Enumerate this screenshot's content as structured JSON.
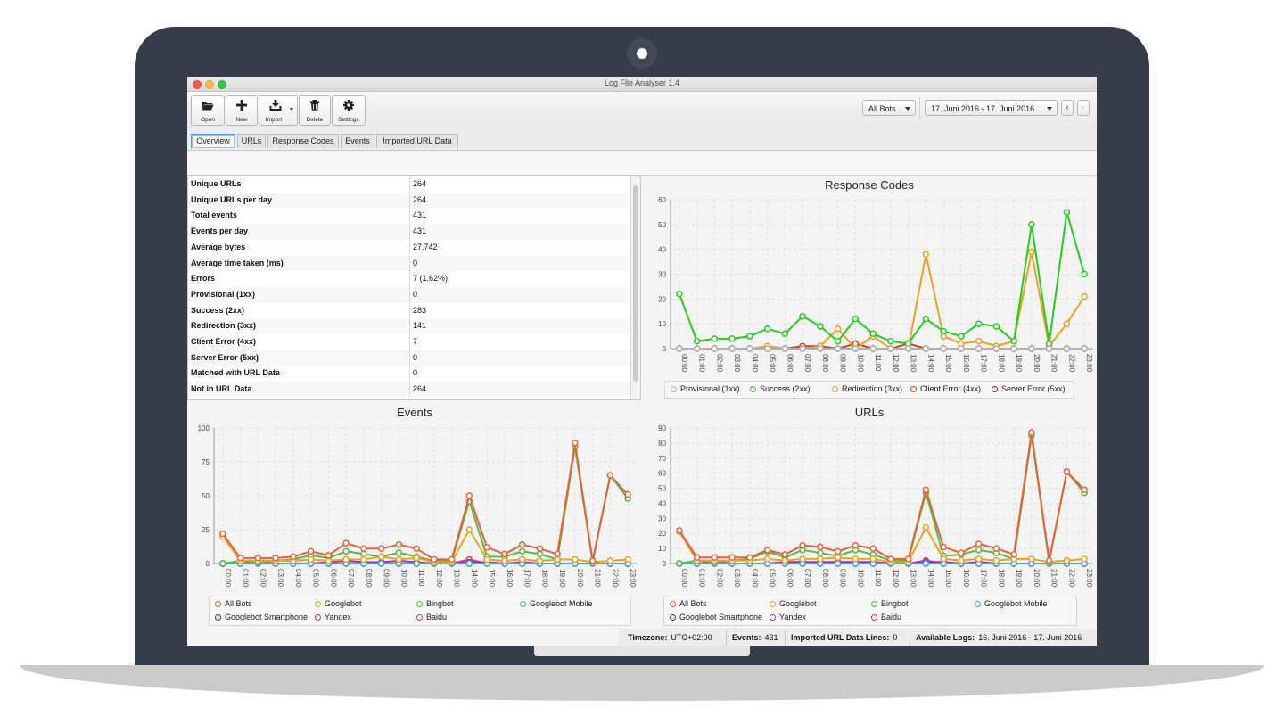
{
  "window": {
    "title": "Log File Analyser 1.4"
  },
  "toolbar": {
    "buttons": [
      {
        "label": "Open",
        "icon": "folder-open-icon"
      },
      {
        "label": "New",
        "icon": "plus-icon"
      },
      {
        "label": "Import",
        "icon": "download-icon"
      },
      {
        "label": "Delete",
        "icon": "trash-icon"
      },
      {
        "label": "Settings",
        "icon": "gear-icon"
      }
    ],
    "bots_filter": "All Bots",
    "date_range": "17. Juni 2016 - 17. Juni 2016",
    "prev_label": "‹",
    "next_label": "›"
  },
  "tabs": [
    "Overview",
    "URLs",
    "Response Codes",
    "Events",
    "Imported URL Data"
  ],
  "active_tab": "Overview",
  "stats": [
    {
      "label": "Unique URLs",
      "value": "264"
    },
    {
      "label": "Unique URLs per day",
      "value": "264"
    },
    {
      "label": "Total events",
      "value": "431"
    },
    {
      "label": "Events per day",
      "value": "431"
    },
    {
      "label": "Average bytes",
      "value": "27.742"
    },
    {
      "label": "Average time taken (ms)",
      "value": "0"
    },
    {
      "label": "Errors",
      "value": "7 (1,62%)"
    },
    {
      "label": "Provisional (1xx)",
      "value": "0"
    },
    {
      "label": "Success (2xx)",
      "value": "283"
    },
    {
      "label": "Redirection (3xx)",
      "value": "141"
    },
    {
      "label": "Client Error (4xx)",
      "value": "7"
    },
    {
      "label": "Server Error (5xx)",
      "value": "0"
    },
    {
      "label": "Matched with URL Data",
      "value": "0"
    },
    {
      "label": "Not in URL Data",
      "value": "264"
    }
  ],
  "chart_data": [
    {
      "type": "line",
      "title": "Response Codes",
      "x": [
        "00:00",
        "01:00",
        "02:00",
        "03:00",
        "04:00",
        "05:00",
        "06:00",
        "07:00",
        "08:00",
        "09:00",
        "10:00",
        "11:00",
        "12:00",
        "13:00",
        "14:00",
        "15:00",
        "16:00",
        "17:00",
        "18:00",
        "19:00",
        "20:00",
        "21:00",
        "22:00",
        "23:00"
      ],
      "ylim": [
        0,
        60
      ],
      "yticks": [
        0,
        10,
        20,
        30,
        40,
        50,
        60
      ],
      "series": [
        {
          "name": "Provisional (1xx)",
          "color": "#b0b0b0",
          "values": [
            0,
            0,
            0,
            0,
            0,
            0,
            0,
            0,
            0,
            0,
            0,
            0,
            0,
            0,
            0,
            0,
            0,
            0,
            0,
            0,
            0,
            0,
            0,
            0
          ]
        },
        {
          "name": "Success (2xx)",
          "color": "#22cc22",
          "values": [
            22,
            3,
            4,
            4,
            5,
            8,
            6,
            13,
            9,
            3,
            12,
            6,
            3,
            2,
            12,
            7,
            5,
            10,
            9,
            3,
            50,
            2,
            55,
            30
          ]
        },
        {
          "name": "Redirection (3xx)",
          "color": "#f0a020",
          "values": [
            0,
            0,
            0,
            0,
            0,
            1,
            0,
            0,
            1,
            8,
            0,
            5,
            0,
            0,
            38,
            5,
            2,
            3,
            1,
            3,
            39,
            1,
            10,
            21
          ]
        },
        {
          "name": "Client Error (4xx)",
          "color": "#e83a1a",
          "values": [
            0,
            0,
            0,
            0,
            0,
            0,
            0,
            1,
            1,
            0,
            2,
            0,
            0,
            2,
            0,
            0,
            0,
            0,
            0,
            0,
            0,
            0,
            0,
            0
          ]
        },
        {
          "name": "Server Error (5xx)",
          "color": "#b01010",
          "values": [
            0,
            0,
            0,
            0,
            0,
            0,
            0,
            0,
            0,
            0,
            0,
            0,
            0,
            0,
            0,
            0,
            0,
            0,
            0,
            0,
            0,
            0,
            0,
            0
          ]
        }
      ]
    },
    {
      "type": "line",
      "title": "Events",
      "x": [
        "00:00",
        "01:00",
        "02:00",
        "03:00",
        "04:00",
        "05:00",
        "06:00",
        "07:00",
        "08:00",
        "09:00",
        "10:00",
        "11:00",
        "12:00",
        "13:00",
        "14:00",
        "15:00",
        "16:00",
        "17:00",
        "18:00",
        "19:00",
        "20:00",
        "21:00",
        "22:00",
        "23:00"
      ],
      "ylim": [
        0,
        100
      ],
      "yticks": [
        0,
        25,
        50,
        75,
        100
      ],
      "series": [
        {
          "name": "All Bots",
          "color": "#e8603a",
          "values": [
            22,
            4,
            4,
            4,
            5,
            9,
            6,
            15,
            11,
            11,
            14,
            11,
            3,
            3,
            50,
            12,
            7,
            14,
            11,
            7,
            89,
            2,
            65,
            51
          ]
        },
        {
          "name": "Googlebot",
          "color": "#f0a020",
          "values": [
            20,
            2,
            2,
            2,
            2,
            3,
            2,
            3,
            3,
            5,
            3,
            4,
            1,
            1,
            25,
            3,
            2,
            3,
            2,
            3,
            3,
            1,
            2,
            3
          ]
        },
        {
          "name": "Bingbot",
          "color": "#55bb44",
          "values": [
            0,
            2,
            1,
            2,
            3,
            6,
            4,
            9,
            7,
            5,
            8,
            5,
            2,
            2,
            46,
            5,
            5,
            9,
            7,
            3,
            86,
            1,
            65,
            48
          ]
        },
        {
          "name": "Googlebot Mobile",
          "color": "#44aadd",
          "values": [
            0,
            0,
            0,
            0,
            0,
            0,
            0,
            0,
            0,
            0,
            0,
            0,
            0,
            0,
            0,
            0,
            0,
            0,
            0,
            0,
            0,
            0,
            0,
            0
          ]
        },
        {
          "name": "Googlebot Smartphone",
          "color": "#224488",
          "values": [
            0,
            0,
            0,
            0,
            0,
            0,
            0,
            0,
            0,
            0,
            0,
            0,
            0,
            0,
            0,
            0,
            0,
            0,
            0,
            0,
            0,
            0,
            0,
            0
          ]
        },
        {
          "name": "Yandex",
          "color": "#9933bb",
          "values": [
            0,
            0,
            1,
            0,
            0,
            0,
            1,
            2,
            1,
            1,
            2,
            1,
            0,
            0,
            1,
            1,
            0,
            1,
            0,
            0,
            0,
            0,
            0,
            0
          ]
        },
        {
          "name": "Baidu",
          "color": "#dd3366",
          "values": [
            0,
            0,
            0,
            0,
            0,
            0,
            0,
            0,
            0,
            0,
            0,
            0,
            0,
            0,
            3,
            0,
            0,
            0,
            0,
            0,
            0,
            0,
            0,
            0
          ]
        }
      ]
    },
    {
      "type": "line",
      "title": "URLs",
      "x": [
        "00:00",
        "01:00",
        "02:00",
        "03:00",
        "04:00",
        "05:00",
        "06:00",
        "07:00",
        "08:00",
        "09:00",
        "10:00",
        "11:00",
        "12:00",
        "13:00",
        "14:00",
        "15:00",
        "16:00",
        "17:00",
        "18:00",
        "19:00",
        "20:00",
        "21:00",
        "22:00",
        "23:00"
      ],
      "ylim": [
        0,
        90
      ],
      "yticks": [
        0,
        10,
        20,
        30,
        40,
        50,
        60,
        70,
        80,
        90
      ],
      "series": [
        {
          "name": "All Bots",
          "color": "#e8603a",
          "values": [
            22,
            4,
            4,
            4,
            4,
            9,
            6,
            12,
            11,
            8,
            12,
            10,
            3,
            3,
            49,
            11,
            7,
            13,
            10,
            6,
            87,
            2,
            61,
            49
          ]
        },
        {
          "name": "Googlebot",
          "color": "#f0a020",
          "values": [
            21,
            2,
            2,
            2,
            2,
            3,
            2,
            3,
            3,
            4,
            3,
            3,
            1,
            1,
            24,
            3,
            2,
            3,
            2,
            3,
            3,
            1,
            2,
            3
          ]
        },
        {
          "name": "Bingbot",
          "color": "#55bb44",
          "values": [
            0,
            2,
            1,
            2,
            3,
            8,
            4,
            9,
            7,
            5,
            9,
            6,
            2,
            2,
            47,
            5,
            6,
            9,
            7,
            3,
            85,
            1,
            61,
            47
          ]
        },
        {
          "name": "Googlebot Mobile",
          "color": "#44aadd",
          "values": [
            0,
            0,
            0,
            0,
            0,
            0,
            0,
            0,
            0,
            0,
            0,
            0,
            0,
            0,
            0,
            0,
            0,
            0,
            0,
            0,
            0,
            0,
            0,
            0
          ]
        },
        {
          "name": "Googlebot Smartphone",
          "color": "#224488",
          "values": [
            0,
            0,
            0,
            0,
            0,
            0,
            0,
            0,
            0,
            0,
            0,
            0,
            0,
            0,
            0,
            0,
            0,
            0,
            0,
            0,
            0,
            0,
            0,
            0
          ]
        },
        {
          "name": "Yandex",
          "color": "#9933bb",
          "values": [
            0,
            0,
            1,
            0,
            0,
            0,
            1,
            1,
            1,
            1,
            1,
            1,
            0,
            0,
            1,
            1,
            0,
            1,
            0,
            0,
            0,
            0,
            0,
            0
          ]
        },
        {
          "name": "Baidu",
          "color": "#dd3366",
          "values": [
            0,
            0,
            0,
            0,
            0,
            0,
            0,
            0,
            0,
            0,
            0,
            0,
            0,
            0,
            2,
            0,
            0,
            0,
            0,
            0,
            0,
            0,
            0,
            0
          ]
        }
      ]
    }
  ],
  "statusbar": {
    "timezone_label": "Timezone:",
    "timezone_value": "UTC+02:00",
    "events_label": "Events:",
    "events_value": "431",
    "imported_label": "Imported URL Data Lines:",
    "imported_value": "0",
    "logs_label": "Available Logs:",
    "logs_value": "16. Juni 2016 - 17. Juni 2016"
  }
}
